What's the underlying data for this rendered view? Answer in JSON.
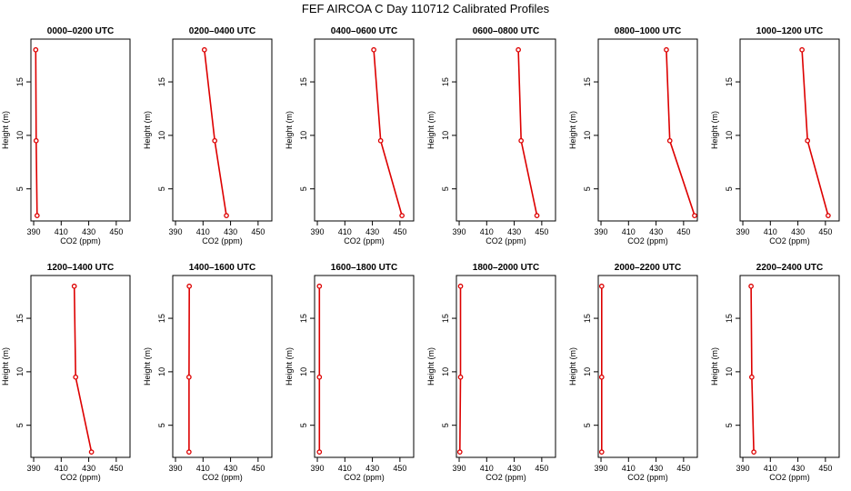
{
  "title": "FEF AIRCOA C  Day 110712  Calibrated Profiles",
  "colors": {
    "series": "#dd0000",
    "axis": "#000000",
    "background": "#ffffff"
  },
  "chart_data": [
    {
      "type": "line",
      "title": "0000–0200 UTC",
      "xlabel": "CO2 (ppm)",
      "ylabel": "Height (m)",
      "xlim": [
        388,
        460
      ],
      "ylim": [
        2,
        19
      ],
      "xticks": [
        390,
        410,
        430,
        450
      ],
      "yticks": [
        5,
        10,
        15
      ],
      "x": [
        391.5,
        391.8,
        392.5
      ],
      "y": [
        18,
        9.5,
        2.5
      ]
    },
    {
      "type": "line",
      "title": "0200–0400 UTC",
      "xlabel": "CO2 (ppm)",
      "ylabel": "Height (m)",
      "xlim": [
        388,
        460
      ],
      "ylim": [
        2,
        19
      ],
      "xticks": [
        390,
        410,
        430,
        450
      ],
      "yticks": [
        5,
        10,
        15
      ],
      "x": [
        411,
        418.5,
        427
      ],
      "y": [
        18,
        9.5,
        2.5
      ]
    },
    {
      "type": "line",
      "title": "0400–0600 UTC",
      "xlabel": "CO2 (ppm)",
      "ylabel": "Height (m)",
      "xlim": [
        388,
        460
      ],
      "ylim": [
        2,
        19
      ],
      "xticks": [
        390,
        410,
        430,
        450
      ],
      "yticks": [
        5,
        10,
        15
      ],
      "x": [
        431,
        436,
        451.5
      ],
      "y": [
        18,
        9.5,
        2.5
      ]
    },
    {
      "type": "line",
      "title": "0600–0800 UTC",
      "xlabel": "CO2 (ppm)",
      "ylabel": "Height (m)",
      "xlim": [
        388,
        460
      ],
      "ylim": [
        2,
        19
      ],
      "xticks": [
        390,
        410,
        430,
        450
      ],
      "yticks": [
        5,
        10,
        15
      ],
      "x": [
        433,
        435,
        446.5
      ],
      "y": [
        18,
        9.5,
        2.5
      ]
    },
    {
      "type": "line",
      "title": "0800–1000 UTC",
      "xlabel": "CO2 (ppm)",
      "ylabel": "Height (m)",
      "xlim": [
        388,
        460
      ],
      "ylim": [
        2,
        19
      ],
      "xticks": [
        390,
        410,
        430,
        450
      ],
      "yticks": [
        5,
        10,
        15
      ],
      "x": [
        437.5,
        440,
        458
      ],
      "y": [
        18,
        9.5,
        2.5
      ]
    },
    {
      "type": "line",
      "title": "1000–1200 UTC",
      "xlabel": "CO2 (ppm)",
      "ylabel": "Height (m)",
      "xlim": [
        388,
        460
      ],
      "ylim": [
        2,
        19
      ],
      "xticks": [
        390,
        410,
        430,
        450
      ],
      "yticks": [
        5,
        10,
        15
      ],
      "x": [
        433,
        437,
        452
      ],
      "y": [
        18,
        9.5,
        2.5
      ]
    },
    {
      "type": "line",
      "title": "1200–1400 UTC",
      "xlabel": "CO2 (ppm)",
      "ylabel": "Height (m)",
      "xlim": [
        388,
        460
      ],
      "ylim": [
        2,
        19
      ],
      "xticks": [
        390,
        410,
        430,
        450
      ],
      "yticks": [
        5,
        10,
        15
      ],
      "x": [
        419.5,
        420.5,
        432
      ],
      "y": [
        18,
        9.5,
        2.5
      ]
    },
    {
      "type": "line",
      "title": "1400–1600 UTC",
      "xlabel": "CO2 (ppm)",
      "ylabel": "Height (m)",
      "xlim": [
        388,
        460
      ],
      "ylim": [
        2,
        19
      ],
      "xticks": [
        390,
        410,
        430,
        450
      ],
      "yticks": [
        5,
        10,
        15
      ],
      "x": [
        400,
        399.8,
        399.8
      ],
      "y": [
        18,
        9.5,
        2.5
      ]
    },
    {
      "type": "line",
      "title": "1600–1800 UTC",
      "xlabel": "CO2 (ppm)",
      "ylabel": "Height (m)",
      "xlim": [
        388,
        460
      ],
      "ylim": [
        2,
        19
      ],
      "xticks": [
        390,
        410,
        430,
        450
      ],
      "yticks": [
        5,
        10,
        15
      ],
      "x": [
        391.5,
        391.5,
        391.5
      ],
      "y": [
        18,
        9.5,
        2.5
      ]
    },
    {
      "type": "line",
      "title": "1800–2000 UTC",
      "xlabel": "CO2 (ppm)",
      "ylabel": "Height (m)",
      "xlim": [
        388,
        460
      ],
      "ylim": [
        2,
        19
      ],
      "xticks": [
        390,
        410,
        430,
        450
      ],
      "yticks": [
        5,
        10,
        15
      ],
      "x": [
        391,
        391,
        390.5
      ],
      "y": [
        18,
        9.5,
        2.5
      ]
    },
    {
      "type": "line",
      "title": "2000–2200 UTC",
      "xlabel": "CO2 (ppm)",
      "ylabel": "Height (m)",
      "xlim": [
        388,
        460
      ],
      "ylim": [
        2,
        19
      ],
      "xticks": [
        390,
        410,
        430,
        450
      ],
      "yticks": [
        5,
        10,
        15
      ],
      "x": [
        390.5,
        390.5,
        390.5
      ],
      "y": [
        18,
        9.5,
        2.5
      ]
    },
    {
      "type": "line",
      "title": "2200–2400 UTC",
      "xlabel": "CO2 (ppm)",
      "ylabel": "Height (m)",
      "xlim": [
        388,
        460
      ],
      "ylim": [
        2,
        19
      ],
      "xticks": [
        390,
        410,
        430,
        450
      ],
      "yticks": [
        5,
        10,
        15
      ],
      "x": [
        396,
        396.5,
        398
      ],
      "y": [
        18,
        9.5,
        2.5
      ]
    }
  ]
}
